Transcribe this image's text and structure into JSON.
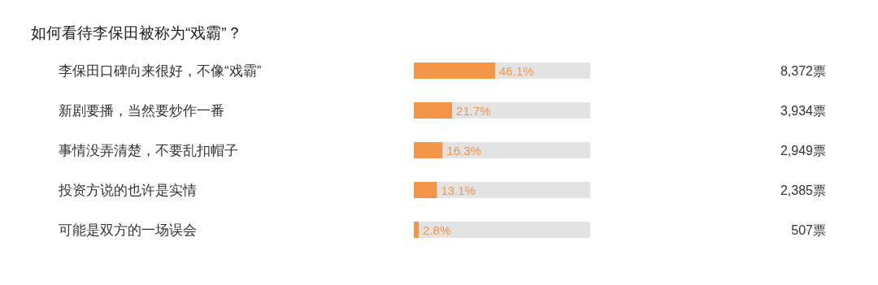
{
  "chart_data": {
    "type": "bar",
    "orientation": "horizontal",
    "title": "如何看待李保田被称为“戏霸”？",
    "categories": [
      "李保田口碑向来很好，不像“戏霸”",
      "新剧要播，当然要炒作一番",
      "事情没弄清楚，不要乱扣帽子",
      "投资方说的也许是实情",
      "可能是双方的一场误会"
    ],
    "series": [
      {
        "color": "#f39549",
        "values": [
          46.1,
          21.7,
          16.3,
          13.1,
          2.8
        ],
        "value_labels": [
          "46.1%",
          "21.7%",
          "16.3%",
          "13.1%",
          "2.8%"
        ]
      }
    ],
    "tick_labels": "y",
    "annotations": [
      "8,372票",
      "3,934票",
      "2,949票",
      "2,385票",
      "507票"
    ]
  }
}
